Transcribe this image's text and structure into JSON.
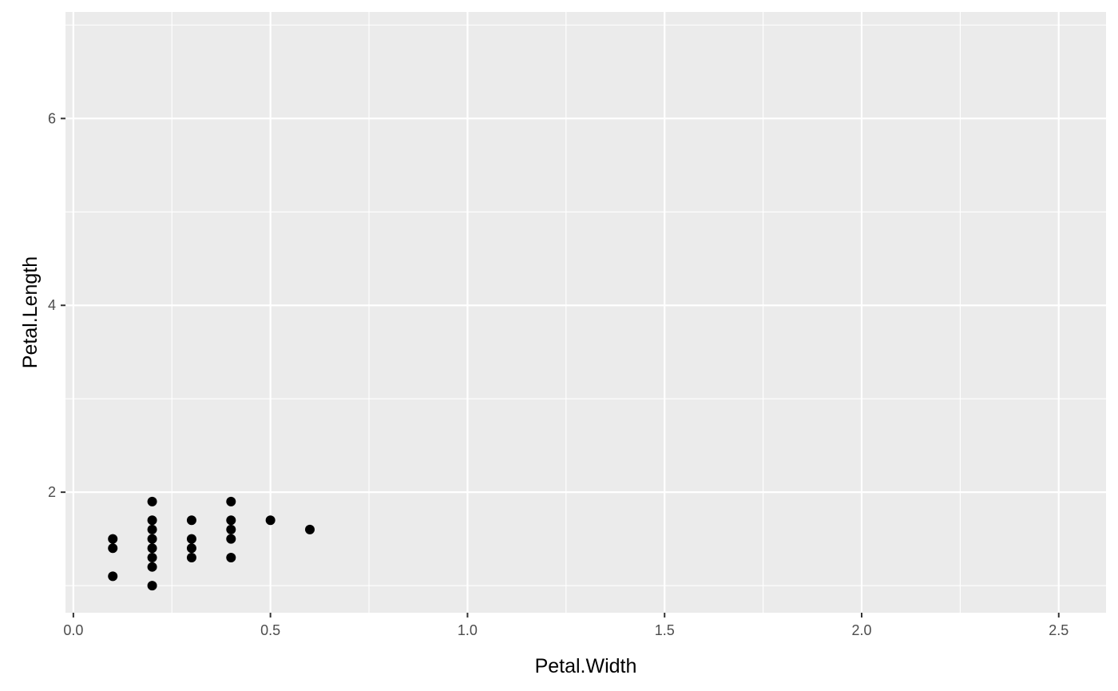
{
  "chart_data": {
    "type": "scatter",
    "title": "",
    "xlabel": "Petal.Width",
    "ylabel": "Petal.Length",
    "xlim": [
      -0.02,
      2.62
    ],
    "ylim": [
      0.71,
      7.14
    ],
    "x_ticks": [
      0.0,
      0.5,
      1.0,
      1.5,
      2.0,
      2.5
    ],
    "x_tick_labels": [
      "0.0",
      "0.5",
      "1.0",
      "1.5",
      "2.0",
      "2.5"
    ],
    "x_minor_ticks": [
      0.25,
      0.75,
      1.25,
      1.75,
      2.25
    ],
    "y_ticks": [
      2,
      4,
      6
    ],
    "y_tick_labels": [
      "2",
      "4",
      "6"
    ],
    "y_minor_ticks": [
      1,
      3,
      5,
      7
    ],
    "grid": true,
    "legend": "none",
    "colors": {
      "panel": "#ebebeb",
      "grid": "#ffffff",
      "point": "#000000",
      "tick": "#333333",
      "tick_text": "#4d4d4d"
    },
    "series": [
      {
        "points": [
          {
            "x": 0.1,
            "y": 1.5
          },
          {
            "x": 0.1,
            "y": 1.4
          },
          {
            "x": 0.1,
            "y": 1.1
          },
          {
            "x": 0.2,
            "y": 1.9
          },
          {
            "x": 0.2,
            "y": 1.7
          },
          {
            "x": 0.2,
            "y": 1.6
          },
          {
            "x": 0.2,
            "y": 1.5
          },
          {
            "x": 0.2,
            "y": 1.4
          },
          {
            "x": 0.2,
            "y": 1.3
          },
          {
            "x": 0.2,
            "y": 1.2
          },
          {
            "x": 0.2,
            "y": 1.0
          },
          {
            "x": 0.3,
            "y": 1.7
          },
          {
            "x": 0.3,
            "y": 1.5
          },
          {
            "x": 0.3,
            "y": 1.4
          },
          {
            "x": 0.3,
            "y": 1.3
          },
          {
            "x": 0.4,
            "y": 1.9
          },
          {
            "x": 0.4,
            "y": 1.7
          },
          {
            "x": 0.4,
            "y": 1.6
          },
          {
            "x": 0.4,
            "y": 1.5
          },
          {
            "x": 0.4,
            "y": 1.3
          },
          {
            "x": 0.5,
            "y": 1.7
          },
          {
            "x": 0.6,
            "y": 1.6
          }
        ]
      }
    ]
  }
}
